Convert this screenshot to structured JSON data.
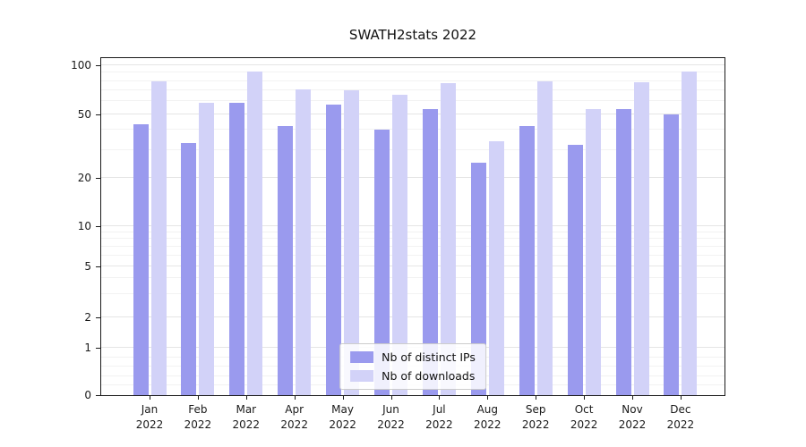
{
  "chart_data": {
    "type": "bar",
    "title": "SWATH2stats 2022",
    "categories": [
      "Jan",
      "Feb",
      "Mar",
      "Apr",
      "May",
      "Jun",
      "Jul",
      "Aug",
      "Sep",
      "Oct",
      "Nov",
      "Dec"
    ],
    "year": "2022",
    "series": [
      {
        "name": "Nb of distinct IPs",
        "color": "#9a9aee",
        "values": [
          43,
          33,
          59,
          42,
          57,
          40,
          54,
          25,
          42,
          32,
          54,
          50
        ]
      },
      {
        "name": "Nb of downloads",
        "color": "#d2d2f8",
        "values": [
          80,
          59,
          91,
          71,
          70,
          66,
          78,
          34,
          80,
          54,
          79,
          92
        ]
      }
    ],
    "yscale": "symlog",
    "yticks": [
      0,
      1,
      2,
      5,
      10,
      20,
      50,
      100
    ],
    "ylim": [
      0,
      110
    ],
    "xlabel": "",
    "ylabel": "",
    "grid": true,
    "legend": {
      "position": "lower center"
    }
  }
}
